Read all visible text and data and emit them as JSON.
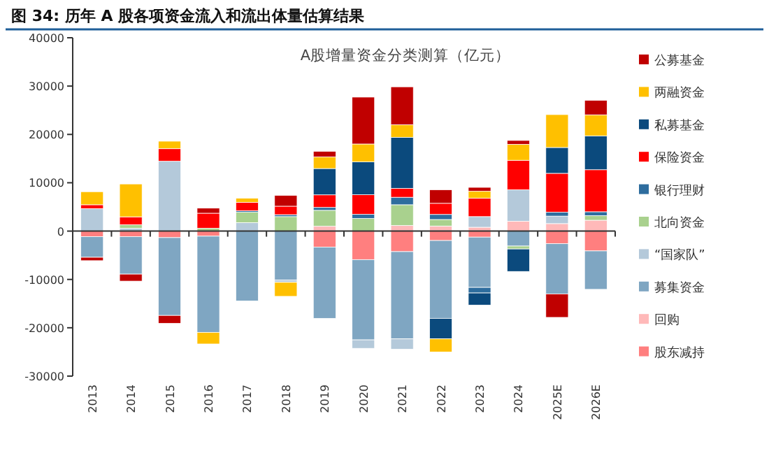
{
  "chart_data": {
    "type": "bar",
    "title": "图 34: 历年 A 股各项资金流入和流出体量估算结果",
    "subtitle": "A股增量资金分类测算（亿元）",
    "categories": [
      "2013",
      "2014",
      "2015",
      "2016",
      "2017",
      "2018",
      "2019",
      "2020",
      "2021",
      "2022",
      "2023",
      "2024",
      "2025E",
      "2026E"
    ],
    "stacked": true,
    "legend": "right",
    "ylim": [
      -30000,
      40000
    ],
    "yticks": [
      -30000,
      -20000,
      -10000,
      0,
      10000,
      20000,
      30000,
      40000
    ],
    "series": [
      {
        "name": "股东减持",
        "color": "#ff7f7f",
        "values": [
          -1150,
          -1150,
          -1350,
          -1050,
          null,
          null,
          -3300,
          -5900,
          -4250,
          -1950,
          -1250,
          null,
          -2600,
          -4100
        ]
      },
      {
        "name": "回购",
        "color": "#ffb9b9",
        "values": [
          null,
          null,
          null,
          null,
          null,
          null,
          1000,
          null,
          1150,
          1050,
          800,
          2050,
          1550,
          2250
        ]
      },
      {
        "name": "募集资金",
        "color": "#7fa6c2",
        "values": [
          -4270,
          -7750,
          -16100,
          -19900,
          -14450,
          -10100,
          -14750,
          -16600,
          -18050,
          -16100,
          -10400,
          -3100,
          -10400,
          -7950
        ]
      },
      {
        "name": "“国家队”",
        "color": "#b4c9da",
        "values": [
          4650,
          600,
          14450,
          null,
          1750,
          -500,
          null,
          -1750,
          -2150,
          null,
          2200,
          6500,
          1550,
          null
        ]
      },
      {
        "name": "北向资金",
        "color": "#a9d18e",
        "values": [
          null,
          700,
          null,
          600,
          2150,
          3000,
          3300,
          2600,
          4300,
          1350,
          null,
          -600,
          null,
          950
        ]
      },
      {
        "name": "银行理财",
        "color": "#2e6d9e",
        "values": [
          null,
          null,
          null,
          null,
          300,
          400,
          600,
          870,
          1550,
          1050,
          -1150,
          null,
          800,
          800
        ]
      },
      {
        "name": "保险资金",
        "color": "#ff0000",
        "values": [
          800,
          1650,
          2600,
          3100,
          1750,
          1750,
          2600,
          4050,
          1850,
          2300,
          3800,
          6100,
          8050,
          8700
        ]
      },
      {
        "name": "私募基金",
        "color": "#0b4a7d",
        "values": [
          null,
          null,
          null,
          null,
          null,
          null,
          5450,
          6800,
          10550,
          -4250,
          -2500,
          -4650,
          5350,
          7000
        ]
      },
      {
        "name": "两融资金",
        "color": "#ffc000",
        "values": [
          2700,
          6800,
          1550,
          -2400,
          850,
          -2900,
          2400,
          3700,
          2600,
          -2700,
          1450,
          3300,
          6800,
          4350
        ]
      },
      {
        "name": "公募基金",
        "color": "#c00000",
        "values": [
          -700,
          -1450,
          -1650,
          1050,
          null,
          2250,
          1150,
          9700,
          7850,
          2800,
          800,
          800,
          -4850,
          3000
        ]
      }
    ]
  }
}
